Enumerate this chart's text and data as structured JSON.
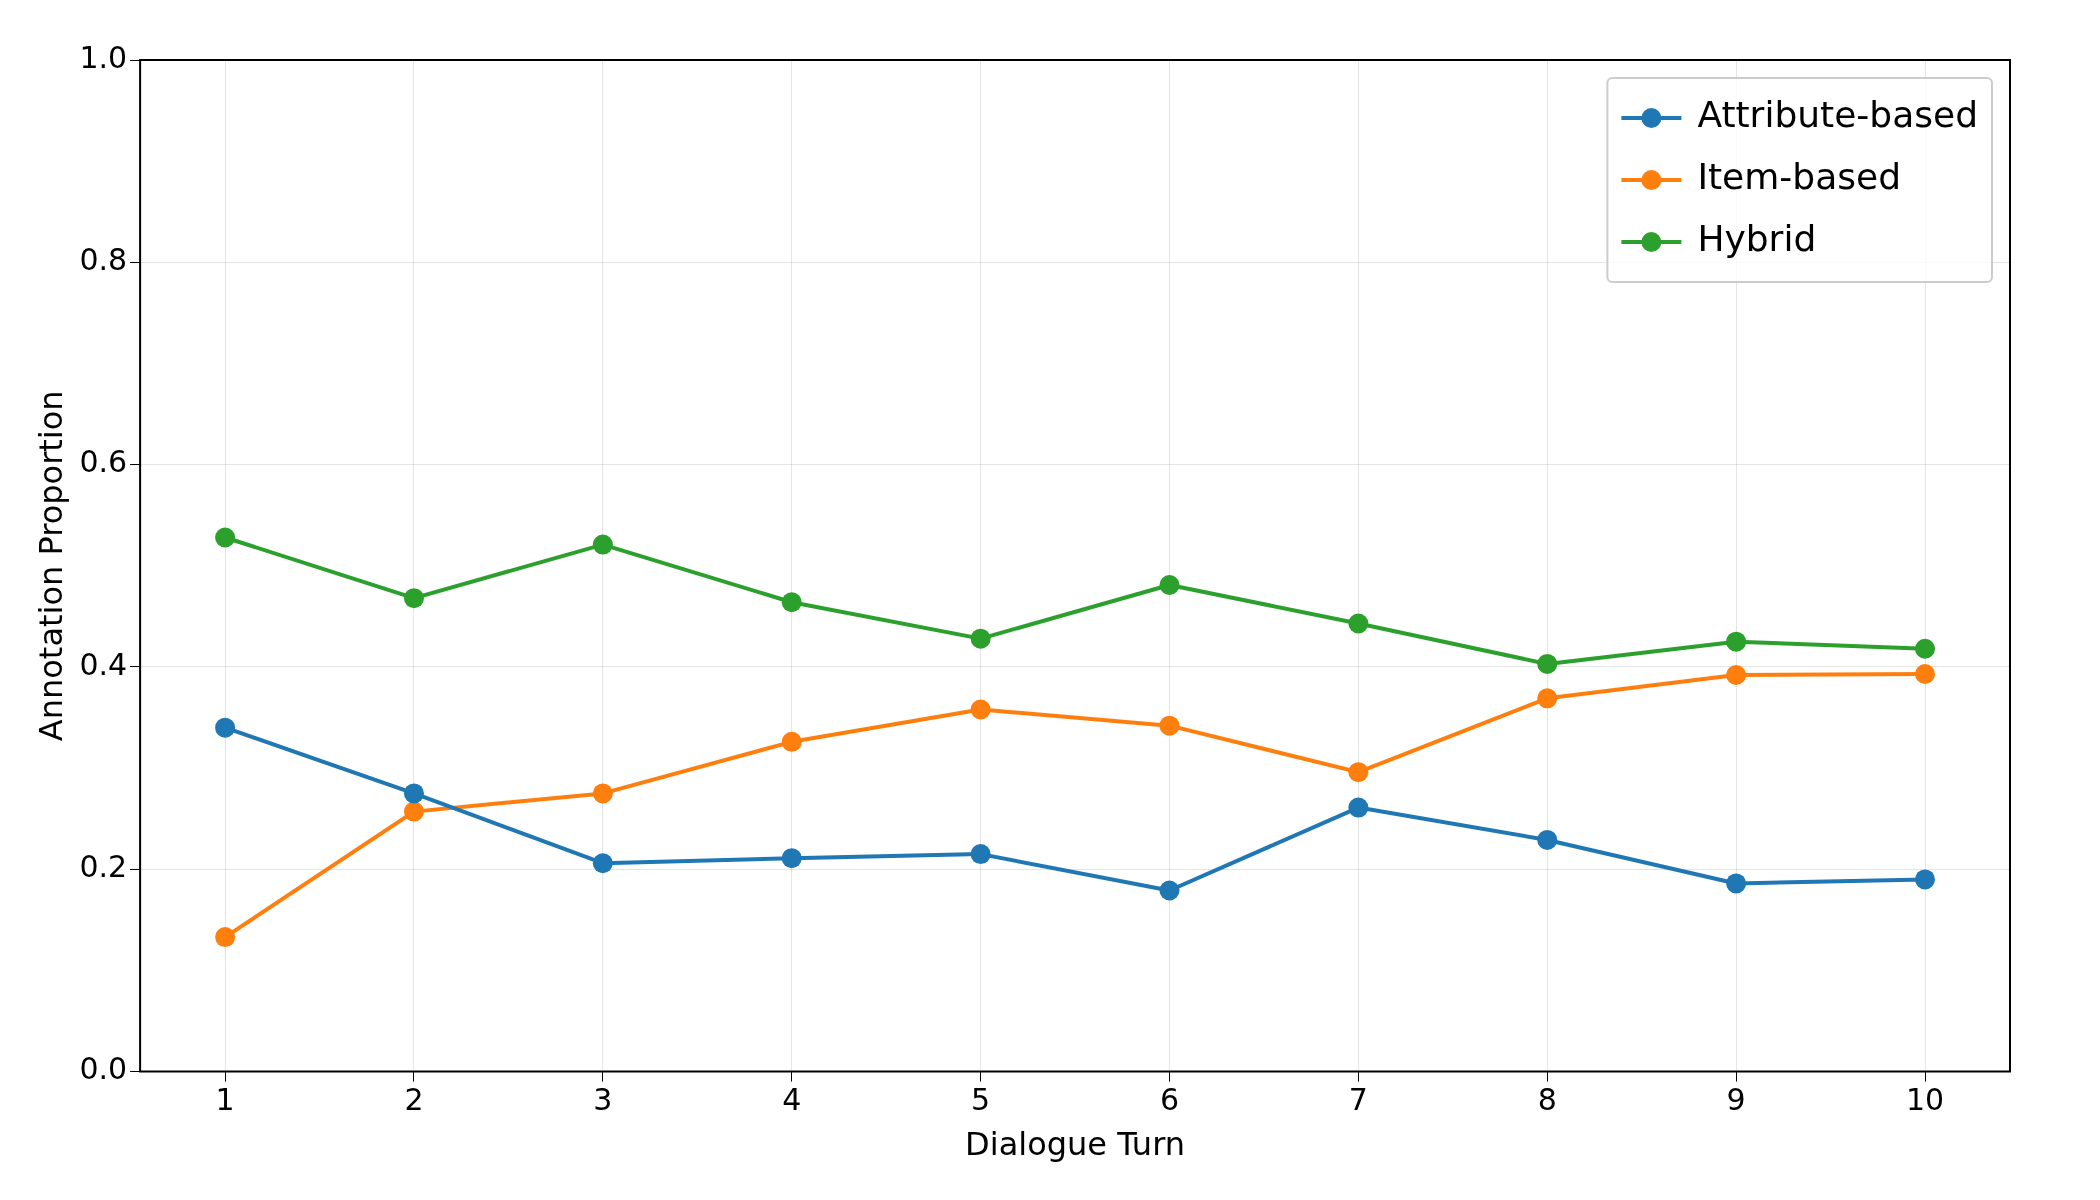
{
  "chart_data": {
    "type": "line",
    "xlabel": "Dialogue Turn",
    "ylabel": "Annotation Proportion",
    "x": [
      1,
      2,
      3,
      4,
      5,
      6,
      7,
      8,
      9,
      10
    ],
    "series": [
      {
        "name": "Attribute-based",
        "color": "#1f77b4",
        "values": [
          0.34,
          0.275,
          0.206,
          0.211,
          0.215,
          0.179,
          0.261,
          0.229,
          0.186,
          0.19
        ]
      },
      {
        "name": "Item-based",
        "color": "#ff7f0e",
        "values": [
          0.133,
          0.257,
          0.275,
          0.326,
          0.358,
          0.342,
          0.296,
          0.369,
          0.392,
          0.393
        ]
      },
      {
        "name": "Hybrid",
        "color": "#2ca02c",
        "values": [
          0.528,
          0.468,
          0.521,
          0.464,
          0.428,
          0.481,
          0.443,
          0.403,
          0.425,
          0.418
        ]
      }
    ],
    "xlim": [
      0.55,
      10.45
    ],
    "xticks": [
      1,
      2,
      3,
      4,
      5,
      6,
      7,
      8,
      9,
      10
    ],
    "ylim": [
      0,
      1
    ],
    "yticks": [
      {
        "value": 0,
        "label": "0.0"
      },
      {
        "value": 0.2,
        "label": "0.2"
      },
      {
        "value": 0.4,
        "label": "0.4"
      },
      {
        "value": 0.6,
        "label": "0.6"
      },
      {
        "value": 0.8,
        "label": "0.8"
      },
      {
        "value": 1,
        "label": "1.0"
      }
    ],
    "grid": true,
    "legend": "top right",
    "marker": "circle",
    "line_style": "solid"
  }
}
